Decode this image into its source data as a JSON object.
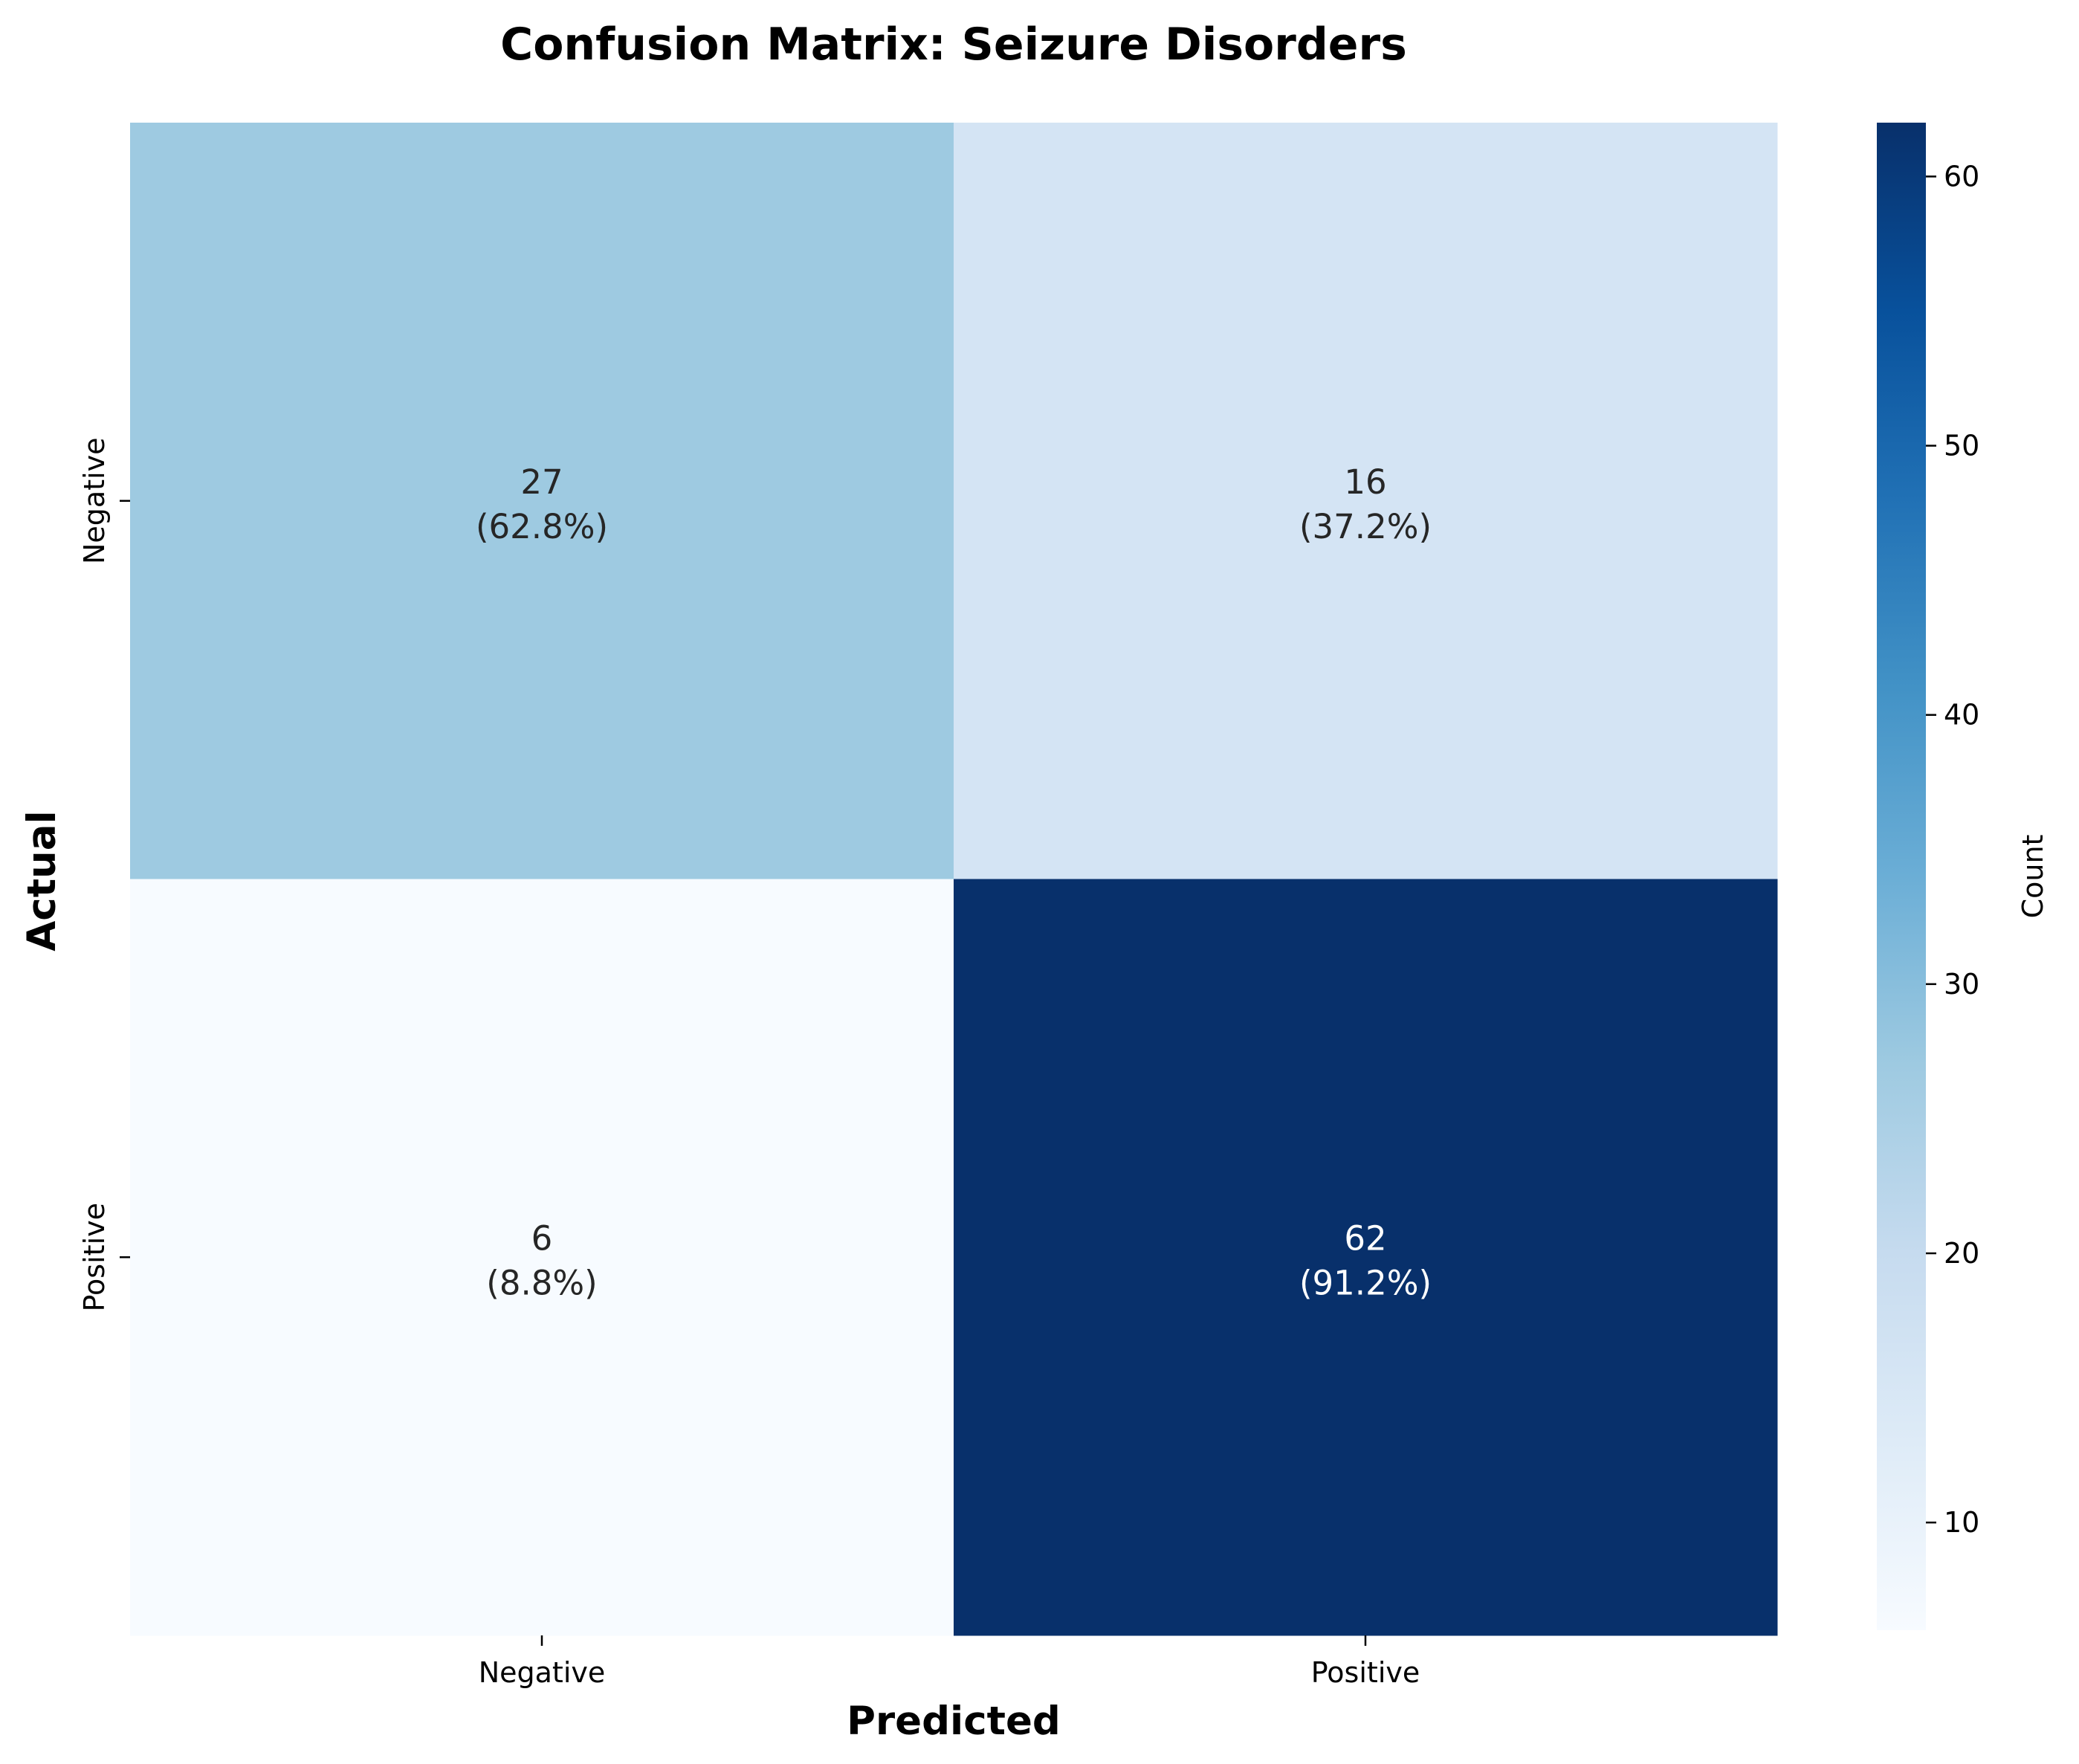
{
  "chart_data": {
    "type": "heatmap",
    "title": "Confusion Matrix: Seizure Disorders",
    "xlabel": "Predicted",
    "ylabel": "Actual",
    "x_categories": [
      "Negative",
      "Positive"
    ],
    "y_categories": [
      "Negative",
      "Positive"
    ],
    "values": [
      [
        27,
        16
      ],
      [
        6,
        62
      ]
    ],
    "cell_labels": [
      [
        "27\n(62.8%)",
        "16\n(37.2%)"
      ],
      [
        "6\n(8.8%)",
        "62\n(91.2%)"
      ]
    ],
    "colormap": "Blues",
    "colorbar": {
      "label": "Count",
      "range": [
        6,
        62
      ],
      "ticks": [
        10,
        20,
        30,
        40,
        50,
        60
      ]
    },
    "grid": false
  }
}
